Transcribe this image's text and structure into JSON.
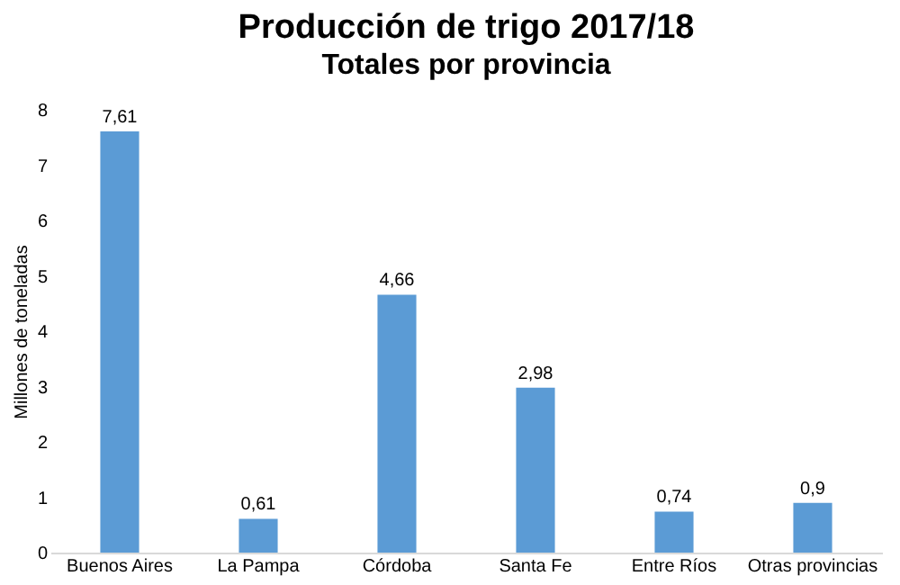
{
  "chart_data": {
    "type": "bar",
    "title": "Producción de trigo 2017/18",
    "subtitle": "Totales por provincia",
    "ylabel": "Millones de toneladas",
    "categories": [
      "Buenos Aires",
      "La Pampa",
      "Córdoba",
      "Santa Fe",
      "Entre Ríos",
      "Otras provincias"
    ],
    "values": [
      7.61,
      0.61,
      4.66,
      2.98,
      0.74,
      0.9
    ],
    "value_labels": [
      "7,61",
      "0,61",
      "4,66",
      "2,98",
      "0,74",
      "0,9"
    ],
    "color": "#5b9bd5",
    "ylim": [
      0,
      8
    ],
    "yticks": [
      0,
      1,
      2,
      3,
      4,
      5,
      6,
      7,
      8
    ],
    "grid": false
  }
}
